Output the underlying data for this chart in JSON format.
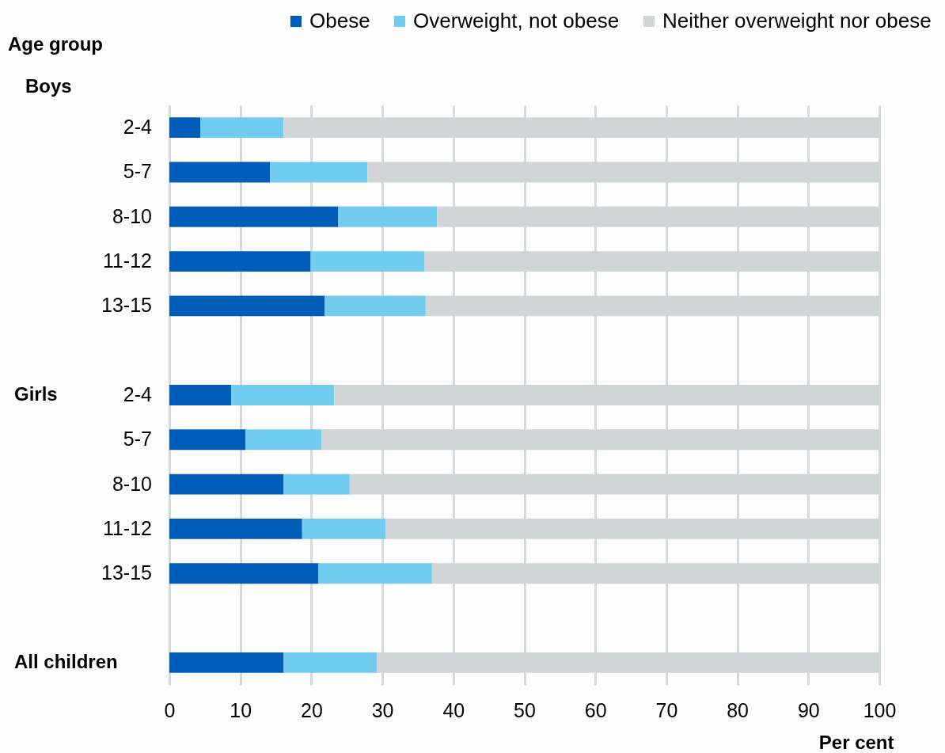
{
  "chart_data": {
    "type": "bar",
    "orientation": "horizontal",
    "stacked": true,
    "ylabel": "Age group",
    "xlabel": "Per cent",
    "categories": [
      "2-4",
      "5-7",
      "8-10",
      "11-12",
      "13-15",
      null,
      "2-4",
      "5-7",
      "8-10",
      "11-12",
      "13-15",
      null,
      null
    ],
    "series": [
      {
        "name": "Obese",
        "color": "#005eb8",
        "values": [
          4.4,
          14.2,
          23.8,
          19.9,
          21.9,
          null,
          8.7,
          10.7,
          16.1,
          18.7,
          21.0,
          null,
          16.1
        ]
      },
      {
        "name": "Overweight, not obese",
        "color": "#71ccef",
        "values": [
          11.7,
          13.7,
          13.9,
          16.0,
          14.2,
          null,
          14.5,
          10.7,
          9.3,
          11.8,
          16.0,
          null,
          13.1
        ]
      },
      {
        "name": "Neither overweight nor obese",
        "color": "#d1d5d6",
        "values": [
          83.9,
          72.1,
          62.3,
          64.1,
          63.9,
          null,
          76.8,
          78.6,
          74.6,
          69.5,
          63.0,
          null,
          70.8
        ]
      }
    ],
    "xlim": [
      0,
      100
    ],
    "xticks": [
      0,
      10,
      20,
      30,
      40,
      50,
      60,
      70,
      80,
      90,
      100
    ],
    "grid": "x",
    "legend": "top right",
    "annotations": [
      "Boys",
      "Girls",
      "All children"
    ]
  }
}
